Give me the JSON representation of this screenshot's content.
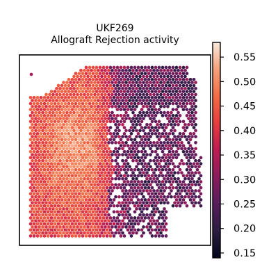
{
  "chart_data": {
    "type": "scatter",
    "subtype": "spatial-hexbin",
    "title_line1": "UKF269",
    "title_line2": "Allograft Rejection activity",
    "xlabel": "",
    "ylabel": "",
    "grid": false,
    "axis_ticks_visible": false,
    "colormap": "rocket",
    "colorbar": {
      "range": [
        0.14,
        0.58
      ],
      "ticks": [
        0.15,
        0.2,
        0.25,
        0.3,
        0.35,
        0.4,
        0.45,
        0.5,
        0.55
      ],
      "tick_labels": [
        "0.15",
        "0.20",
        "0.25",
        "0.30",
        "0.35",
        "0.40",
        "0.45",
        "0.50",
        "0.55"
      ]
    },
    "regions": [
      {
        "name": "left tissue region",
        "approx_activity_range": [
          0.4,
          0.55
        ]
      },
      {
        "name": "right tissue region",
        "approx_activity_range": [
          0.15,
          0.32
        ]
      }
    ]
  }
}
